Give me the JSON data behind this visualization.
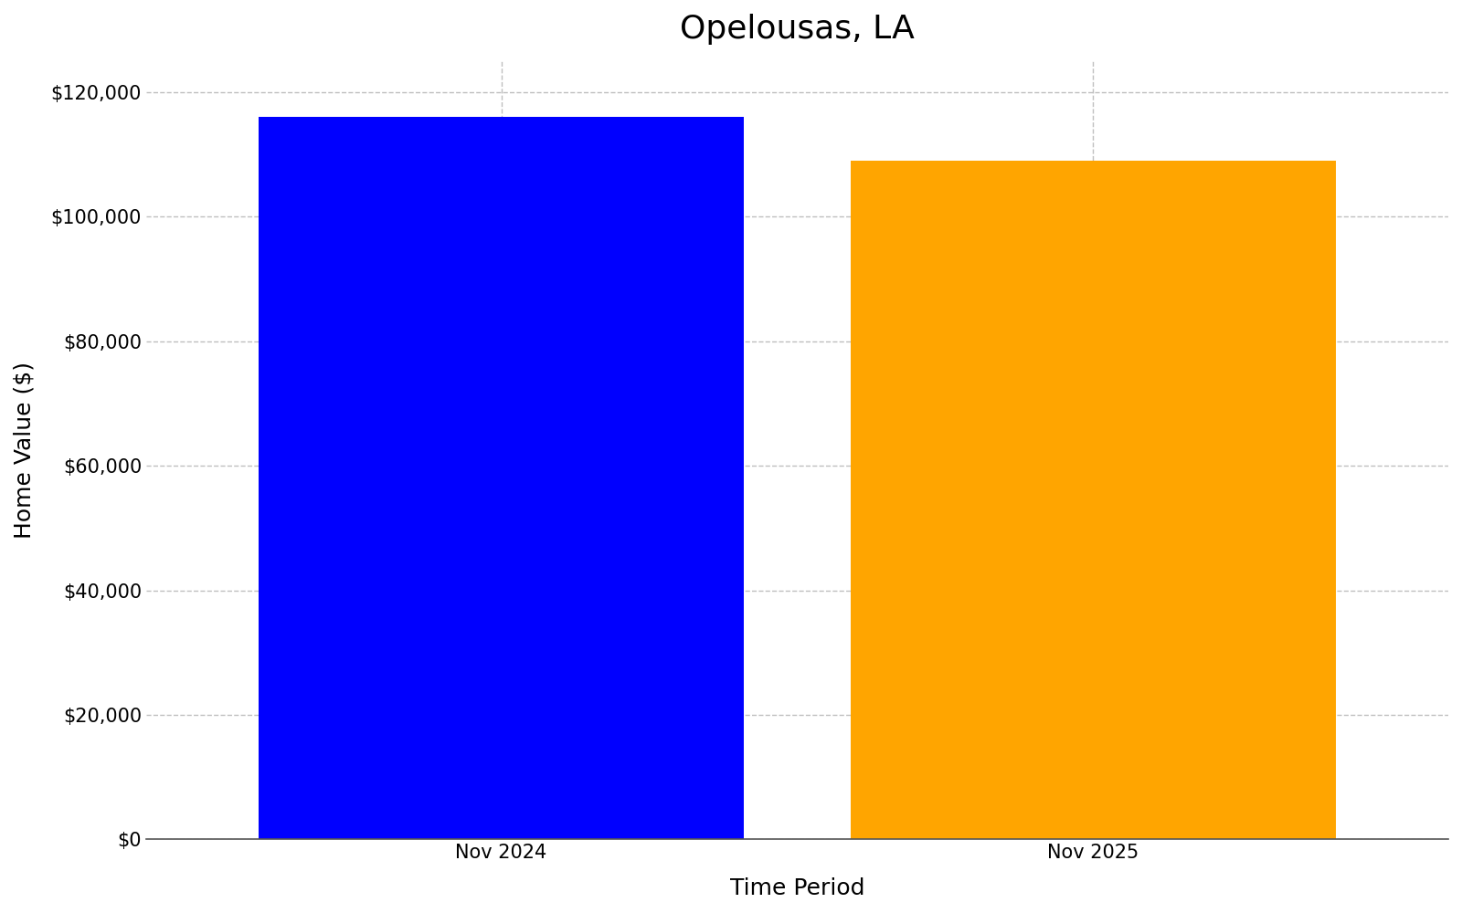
{
  "title": "Opelousas, LA",
  "categories": [
    "Nov 2024",
    "Nov 2025"
  ],
  "values": [
    116000,
    109000
  ],
  "bar_colors": [
    "#0000FF",
    "#FFA500"
  ],
  "xlabel": "Time Period",
  "ylabel": "Home Value ($)",
  "ylim": [
    0,
    125000
  ],
  "yticks": [
    0,
    20000,
    40000,
    60000,
    80000,
    100000,
    120000
  ],
  "title_fontsize": 26,
  "axis_label_fontsize": 18,
  "tick_fontsize": 15,
  "grid_color": "#b0b0b0",
  "grid_linestyle": "--",
  "grid_alpha": 0.8,
  "bar_width": 0.82,
  "background_color": "#ffffff"
}
